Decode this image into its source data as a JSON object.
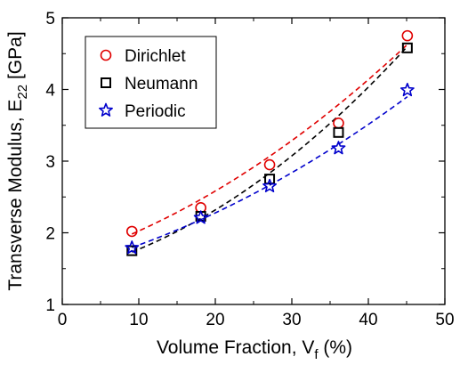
{
  "chart_data": {
    "type": "scatter",
    "title": "",
    "xlabel": {
      "main": "Volume Fraction, V",
      "sub": "f",
      "tail": " (%)"
    },
    "ylabel": {
      "main": "Transverse Modulus, E",
      "sub": "22",
      "tail": " [GPa]"
    },
    "xlim": [
      0,
      50
    ],
    "ylim": [
      1,
      5
    ],
    "xticks": [
      "0",
      "10",
      "20",
      "30",
      "40",
      "50"
    ],
    "yticks": [
      "1",
      "2",
      "3",
      "4",
      "5"
    ],
    "grid": false,
    "legend_position": "top-left",
    "series": [
      {
        "name": "Dirichlet",
        "marker": "circle",
        "color": "#e00000",
        "x": [
          9.1,
          18.1,
          27.1,
          36.1,
          45.1
        ],
        "y": [
          2.02,
          2.35,
          2.95,
          3.53,
          4.75
        ],
        "fit": [
          1.615,
          0.0337,
          0.000734
        ]
      },
      {
        "name": "Neumann",
        "marker": "square",
        "color": "#000000",
        "x": [
          9.1,
          18.1,
          27.1,
          36.1,
          45.1
        ],
        "y": [
          1.75,
          2.23,
          2.75,
          3.4,
          4.58
        ],
        "fit": [
          1.427,
          0.0241,
          0.001026
        ]
      },
      {
        "name": "Periodic",
        "marker": "star",
        "color": "#0000cc",
        "x": [
          9.1,
          18.1,
          27.1,
          36.1,
          45.1
        ],
        "y": [
          1.79,
          2.21,
          2.65,
          3.18,
          3.99
        ],
        "fit": [
          1.493,
          0.028,
          0.000562
        ]
      }
    ]
  }
}
